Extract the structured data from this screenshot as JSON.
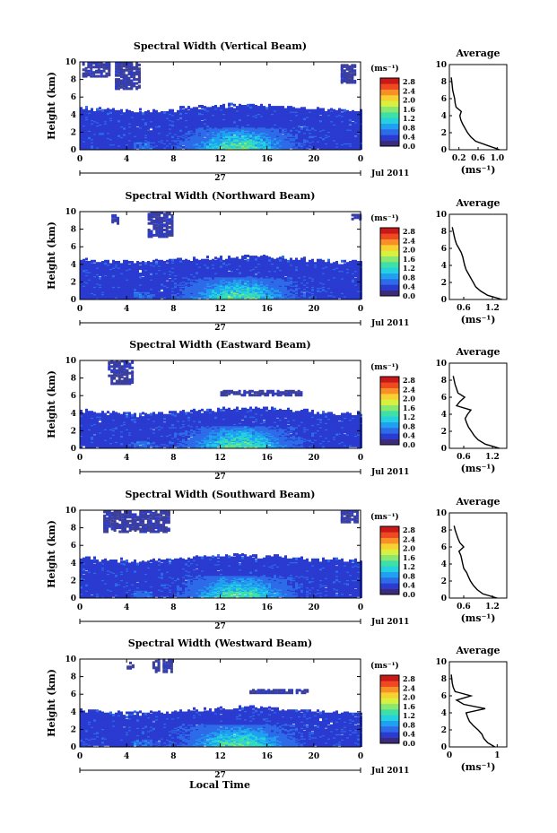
{
  "figure": {
    "date_label": "Jul 2011",
    "day_label": "27",
    "xlabel": "Local Time",
    "ylabel": "Height (km)",
    "unit_label": "(ms⁻¹)",
    "avg_title": "Average",
    "avg_xlabel": "(ms⁻¹)"
  },
  "colorscale": {
    "ticks": [
      "2.8",
      "2.4",
      "2.0",
      "1.6",
      "1.2",
      "0.8",
      "0.4",
      "0.0"
    ],
    "colors": [
      "#3c2a7a",
      "#2a3bd0",
      "#2d6be8",
      "#1fa0f0",
      "#25d0e0",
      "#3fe0a8",
      "#8ae870",
      "#d8f040",
      "#f8d030",
      "#f89028",
      "#f04820",
      "#c81818"
    ]
  },
  "chart_data": [
    {
      "type": "heatmap",
      "title": "Spectral Width (Vertical Beam)",
      "x_ticks": [
        "0",
        "4",
        "8",
        "12",
        "16",
        "20",
        "0"
      ],
      "xlim": [
        0,
        24
      ],
      "y_ticks": [
        "0",
        "2",
        "4",
        "6",
        "8",
        "10"
      ],
      "ylim": [
        0,
        10
      ],
      "echo_top_km": 4.8,
      "upper_patches": [
        [
          0.2,
          2.6,
          8.2,
          9.8
        ],
        [
          3.0,
          5.0,
          6.8,
          9.8
        ],
        [
          22.3,
          23.5,
          7.5,
          9.5
        ]
      ],
      "avg": {
        "x_ticks": [
          "0.2",
          "0.6",
          "1.0"
        ],
        "xlim": [
          0,
          1.2
        ],
        "heights": [
          0,
          0.5,
          1,
          1.5,
          2,
          2.5,
          3,
          3.5,
          4,
          4.5,
          5,
          5.5,
          6,
          6.5,
          7,
          7.5,
          8,
          8.5
        ],
        "values": [
          1.05,
          0.8,
          0.55,
          0.45,
          0.38,
          0.33,
          0.28,
          0.24,
          0.22,
          0.25,
          0.14,
          0.12,
          0.11,
          0.09,
          0.07,
          0.06,
          0.05,
          0.04
        ]
      }
    },
    {
      "type": "heatmap",
      "title": "Spectral Width (Northward Beam)",
      "x_ticks": [
        "0",
        "4",
        "8",
        "12",
        "16",
        "20",
        "0"
      ],
      "xlim": [
        0,
        24
      ],
      "y_ticks": [
        "0",
        "2",
        "4",
        "6",
        "8",
        "10"
      ],
      "ylim": [
        0,
        10
      ],
      "echo_top_km": 4.6,
      "upper_patches": [
        [
          2.7,
          3.3,
          8.5,
          9.5
        ],
        [
          5.8,
          7.8,
          7.0,
          9.8
        ],
        [
          23.2,
          23.9,
          9.0,
          9.6
        ]
      ],
      "avg": {
        "x_ticks": [
          "0.6",
          "1.2"
        ],
        "xlim": [
          0.3,
          1.5
        ],
        "heights": [
          0,
          0.5,
          1,
          1.5,
          2,
          2.5,
          3,
          3.5,
          4,
          4.5,
          5,
          5.5,
          6,
          6.5,
          7,
          7.5,
          8,
          8.5
        ],
        "values": [
          1.4,
          1.1,
          0.95,
          0.85,
          0.8,
          0.75,
          0.7,
          0.65,
          0.62,
          0.6,
          0.58,
          0.55,
          0.5,
          0.45,
          0.42,
          0.4,
          0.38,
          0.36
        ]
      }
    },
    {
      "type": "heatmap",
      "title": "Spectral Width (Eastward Beam)",
      "x_ticks": [
        "0",
        "4",
        "8",
        "12",
        "16",
        "20",
        "0"
      ],
      "xlim": [
        0,
        24
      ],
      "y_ticks": [
        "0",
        "2",
        "4",
        "6",
        "8",
        "10"
      ],
      "ylim": [
        0,
        10
      ],
      "echo_top_km": 4.3,
      "upper_patches": [
        [
          2.4,
          4.5,
          7.2,
          9.8
        ],
        [
          12.0,
          19.0,
          5.9,
          6.4
        ]
      ],
      "avg": {
        "x_ticks": [
          "0.6",
          "1.2"
        ],
        "xlim": [
          0.3,
          1.5
        ],
        "heights": [
          0,
          0.5,
          1,
          1.5,
          2,
          2.5,
          3,
          3.5,
          4,
          4.5,
          5,
          5.5,
          6,
          6.5,
          7,
          7.5,
          8,
          8.5
        ],
        "values": [
          1.35,
          1.05,
          0.9,
          0.82,
          0.76,
          0.7,
          0.66,
          0.63,
          0.68,
          0.75,
          0.45,
          0.52,
          0.62,
          0.48,
          0.45,
          0.42,
          0.4,
          0.38
        ]
      }
    },
    {
      "type": "heatmap",
      "title": "Spectral Width (Southward Beam)",
      "x_ticks": [
        "0",
        "4",
        "8",
        "12",
        "16",
        "20",
        "0"
      ],
      "xlim": [
        0,
        24
      ],
      "y_ticks": [
        "0",
        "2",
        "4",
        "6",
        "8",
        "10"
      ],
      "ylim": [
        0,
        10
      ],
      "echo_top_km": 4.6,
      "upper_patches": [
        [
          2.0,
          7.6,
          7.4,
          9.8
        ],
        [
          22.3,
          23.8,
          8.5,
          9.8
        ]
      ],
      "avg": {
        "x_ticks": [
          "0.6",
          "1.2"
        ],
        "xlim": [
          0.3,
          1.5
        ],
        "heights": [
          0,
          0.5,
          1,
          1.5,
          2,
          2.5,
          3,
          3.5,
          4,
          4.5,
          5,
          5.5,
          6,
          6.5,
          7,
          7.5,
          8,
          8.5
        ],
        "values": [
          1.3,
          1.0,
          0.88,
          0.8,
          0.74,
          0.7,
          0.66,
          0.6,
          0.58,
          0.56,
          0.54,
          0.5,
          0.6,
          0.52,
          0.48,
          0.45,
          0.42,
          0.4
        ]
      }
    },
    {
      "type": "heatmap",
      "title": "Spectral Width (Westward Beam)",
      "x_ticks": [
        "0",
        "4",
        "8",
        "12",
        "16",
        "20",
        "0"
      ],
      "xlim": [
        0,
        24
      ],
      "y_ticks": [
        "0",
        "2",
        "4",
        "6",
        "8",
        "10"
      ],
      "ylim": [
        0,
        10
      ],
      "echo_top_km": 4.2,
      "upper_patches": [
        [
          4.0,
          4.5,
          8.8,
          9.5
        ],
        [
          6.2,
          7.9,
          8.4,
          9.8
        ],
        [
          14.5,
          19.5,
          6.0,
          6.4
        ]
      ],
      "avg": {
        "x_ticks": [
          "0",
          "1"
        ],
        "xlim": [
          0,
          1.2
        ],
        "heights": [
          0,
          0.5,
          1,
          1.5,
          2,
          2.5,
          3,
          3.5,
          4,
          4.5,
          5,
          5.5,
          6,
          6.5,
          7,
          7.5,
          8,
          8.5
        ],
        "values": [
          0.95,
          0.8,
          0.72,
          0.68,
          0.6,
          0.5,
          0.42,
          0.38,
          0.35,
          0.75,
          0.3,
          0.15,
          0.45,
          0.12,
          0.08,
          0.06,
          0.05,
          0.04
        ]
      }
    }
  ]
}
